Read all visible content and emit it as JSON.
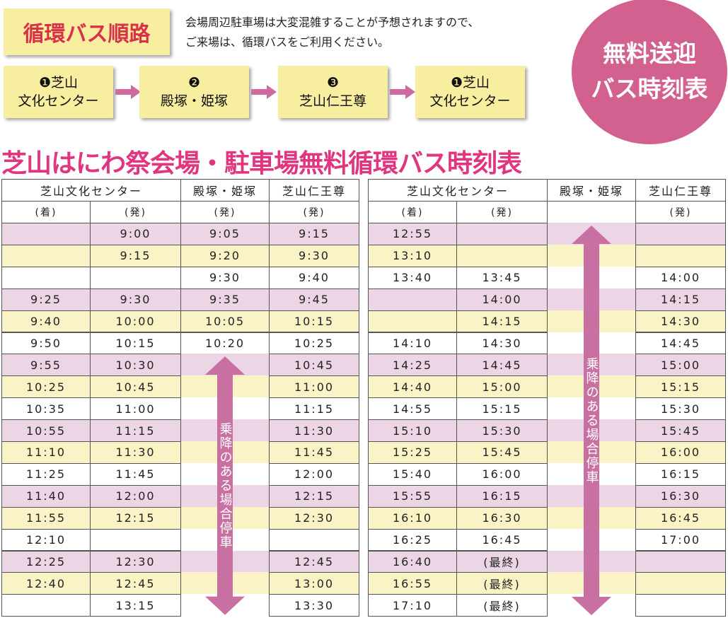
{
  "header": {
    "route_title": "循環バス順路",
    "notice": [
      "会場周辺駐車場は大変混雑することが予想されますので、",
      "ご来場は、循環バスをご利用ください。"
    ],
    "route": [
      {
        "number": "❶",
        "lines": [
          "芝山",
          "文化センター"
        ]
      },
      {
        "number": "❷",
        "lines": [
          "殿塚・姫塚"
        ]
      },
      {
        "number": "❸",
        "lines": [
          "芝山仁王尊"
        ]
      },
      {
        "number": "❶",
        "lines": [
          "芝山",
          "文化センター"
        ]
      }
    ],
    "badge": [
      "無料送迎",
      "バス時刻表"
    ],
    "title": "芝山はにわ祭会場・駐車場無料循環バス時刻表"
  },
  "tables": [
    {
      "stations": [
        "芝山文化センター",
        "殿塚・姫塚",
        "芝山仁王尊"
      ],
      "subheader": [
        "(着)",
        "(発)",
        "(発)",
        "(発)"
      ],
      "arrow_label": "乗降のある場合停車",
      "rows": [
        [
          null,
          "9:00",
          "9:05",
          "9:15"
        ],
        [
          null,
          "9:15",
          "9:20",
          "9:30"
        ],
        [
          null,
          null,
          "9:30",
          "9:40"
        ],
        [
          "9:25",
          "9:30",
          "9:35",
          "9:45"
        ],
        [
          "9:40",
          "10:00",
          "10:05",
          "10:15"
        ],
        [
          "9:50",
          "10:15",
          "10:20",
          "10:25"
        ],
        [
          "9:55",
          "10:30",
          null,
          "10:45"
        ],
        [
          "10:25",
          "10:45",
          null,
          "11:00"
        ],
        [
          "10:35",
          "11:00",
          null,
          "11:15"
        ],
        [
          "10:55",
          "11:15",
          null,
          "11:30"
        ],
        [
          "11:10",
          "11:30",
          null,
          "11:45"
        ],
        [
          "11:25",
          "11:45",
          null,
          "12:00"
        ],
        [
          "11:40",
          "12:00",
          null,
          "12:15"
        ],
        [
          "11:55",
          "12:15",
          null,
          "12:30"
        ],
        [
          "12:10",
          null,
          null,
          null
        ],
        [
          "12:25",
          "12:30",
          null,
          "12:45"
        ],
        [
          "12:40",
          "12:45",
          null,
          "13:00"
        ],
        [
          null,
          "13:15",
          null,
          "13:30"
        ]
      ]
    },
    {
      "stations": [
        "芝山文化センター",
        "殿塚・姫塚",
        "芝山仁王尊"
      ],
      "subheader": [
        "(着)",
        "(発)",
        null,
        "(発)"
      ],
      "arrow_label": "乗降のある場合停車",
      "rows": [
        [
          "12:55",
          null,
          null,
          null
        ],
        [
          "13:10",
          null,
          null,
          null
        ],
        [
          "13:40",
          "13:45",
          null,
          "14:00"
        ],
        [
          null,
          "14:00",
          null,
          "14:15"
        ],
        [
          null,
          "14:15",
          null,
          "14:30"
        ],
        [
          "14:10",
          "14:30",
          null,
          "14:45"
        ],
        [
          "14:25",
          "14:45",
          null,
          "15:00"
        ],
        [
          "14:40",
          "15:00",
          null,
          "15:15"
        ],
        [
          "14:55",
          "15:15",
          null,
          "15:30"
        ],
        [
          "15:10",
          "15:30",
          null,
          "15:45"
        ],
        [
          "15:25",
          "15:45",
          null,
          "16:00"
        ],
        [
          "15:40",
          "16:00",
          null,
          "16:15"
        ],
        [
          "15:55",
          "16:15",
          null,
          "16:30"
        ],
        [
          "16:10",
          "16:30",
          null,
          "16:45"
        ],
        [
          "16:25",
          "16:45",
          null,
          "17:00"
        ],
        [
          "16:40",
          "(最終)",
          null,
          null
        ],
        [
          "16:55",
          "(最終)",
          null,
          null
        ],
        [
          "17:10",
          "(最終)",
          null,
          null
        ]
      ]
    }
  ]
}
